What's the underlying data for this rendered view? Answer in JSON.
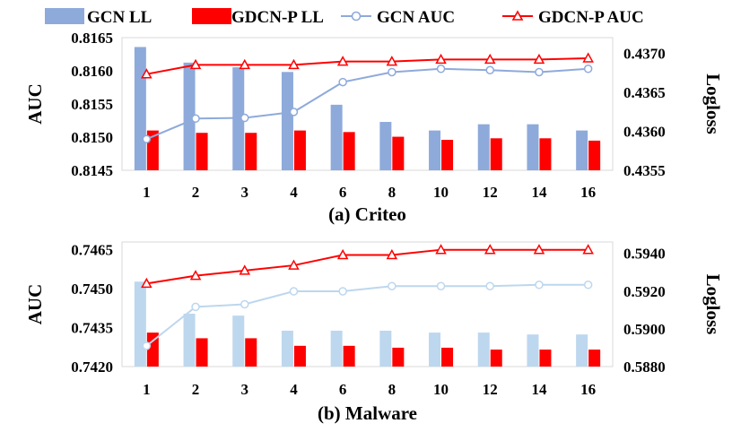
{
  "legend": {
    "items": [
      {
        "label": "GCN LL",
        "kind": "bar",
        "color": "#8eaadb"
      },
      {
        "label": "GDCN-P LL",
        "kind": "bar",
        "color": "#ff0000"
      },
      {
        "label": "GCN AUC",
        "kind": "line-circle",
        "color": "#8eaadb"
      },
      {
        "label": "GDCN-P AUC",
        "kind": "line-triangle",
        "color": "#ff0000"
      }
    ]
  },
  "chart_data": [
    {
      "type": "bar",
      "caption": "(a) Criteo",
      "categories": [
        "1",
        "2",
        "3",
        "4",
        "6",
        "8",
        "10",
        "12",
        "14",
        "16"
      ],
      "ylabel": "AUC",
      "y2label": "Logloss",
      "ylim": [
        0.8145,
        0.8165
      ],
      "yticks": [
        "0.8145",
        "0.8150",
        "0.8155",
        "0.8160",
        "0.8165"
      ],
      "y2lim": [
        0.4355,
        0.4372
      ],
      "y2ticks": [
        "0.4355",
        "0.4360",
        "0.4365",
        "0.4370"
      ],
      "grid": false,
      "series": [
        {
          "name": "GCN LL",
          "type": "bar",
          "axis": "right",
          "color": "#8eaadb",
          "values": [
            0.43708,
            0.43688,
            0.43682,
            0.43676,
            0.43634,
            0.43612,
            0.43601,
            0.43609,
            0.43609,
            0.43601
          ]
        },
        {
          "name": "GDCN-P LL",
          "type": "bar",
          "axis": "right",
          "color": "#ff0000",
          "values": [
            0.43601,
            0.43598,
            0.43598,
            0.43601,
            0.43599,
            0.43593,
            0.43589,
            0.43591,
            0.43591,
            0.43588
          ]
        },
        {
          "name": "GCN AUC",
          "type": "line",
          "marker": "circle",
          "axis": "left",
          "color": "#8eaadb",
          "values": [
            0.81497,
            0.81528,
            0.81529,
            0.81538,
            0.81583,
            0.81598,
            0.81603,
            0.81601,
            0.81598,
            0.81603
          ]
        },
        {
          "name": "GDCN-P AUC",
          "type": "line",
          "marker": "triangle",
          "axis": "left",
          "color": "#ff0000",
          "values": [
            0.81595,
            0.81609,
            0.81609,
            0.81609,
            0.81614,
            0.81614,
            0.81617,
            0.81617,
            0.81617,
            0.81619
          ]
        }
      ]
    },
    {
      "type": "bar",
      "caption": "(b) Malware",
      "categories": [
        "1",
        "2",
        "3",
        "4",
        "6",
        "8",
        "10",
        "12",
        "14",
        "16"
      ],
      "ylabel": "AUC",
      "y2label": "Logloss",
      "ylim": [
        0.742,
        0.7468
      ],
      "yticks": [
        "0.7420",
        "0.7435",
        "0.7450",
        "0.7465"
      ],
      "y2lim": [
        0.588,
        0.5946
      ],
      "y2ticks": [
        "0.5880",
        "0.5900",
        "0.5920",
        "0.5940"
      ],
      "grid": false,
      "series": [
        {
          "name": "GCN LL",
          "type": "bar",
          "axis": "right",
          "color": "#bdd7ee",
          "values": [
            0.5925,
            0.5908,
            0.5907,
            0.5899,
            0.5899,
            0.5899,
            0.5898,
            0.5898,
            0.5897,
            0.5897
          ]
        },
        {
          "name": "GDCN-P LL",
          "type": "bar",
          "axis": "right",
          "color": "#ff0000",
          "values": [
            0.5898,
            0.5895,
            0.5895,
            0.5891,
            0.5891,
            0.589,
            0.589,
            0.5889,
            0.5889,
            0.5889
          ]
        },
        {
          "name": "GCN AUC",
          "type": "line",
          "marker": "circle",
          "axis": "left",
          "color": "#bdd7ee",
          "values": [
            0.7428,
            0.7443,
            0.7444,
            0.7449,
            0.7449,
            0.7451,
            0.7451,
            0.7451,
            0.74515,
            0.74515
          ]
        },
        {
          "name": "GDCN-P AUC",
          "type": "line",
          "marker": "triangle",
          "axis": "left",
          "color": "#ff0000",
          "values": [
            0.7452,
            0.7455,
            0.7457,
            0.7459,
            0.7463,
            0.7463,
            0.7465,
            0.7465,
            0.7465,
            0.7465
          ]
        }
      ]
    }
  ]
}
